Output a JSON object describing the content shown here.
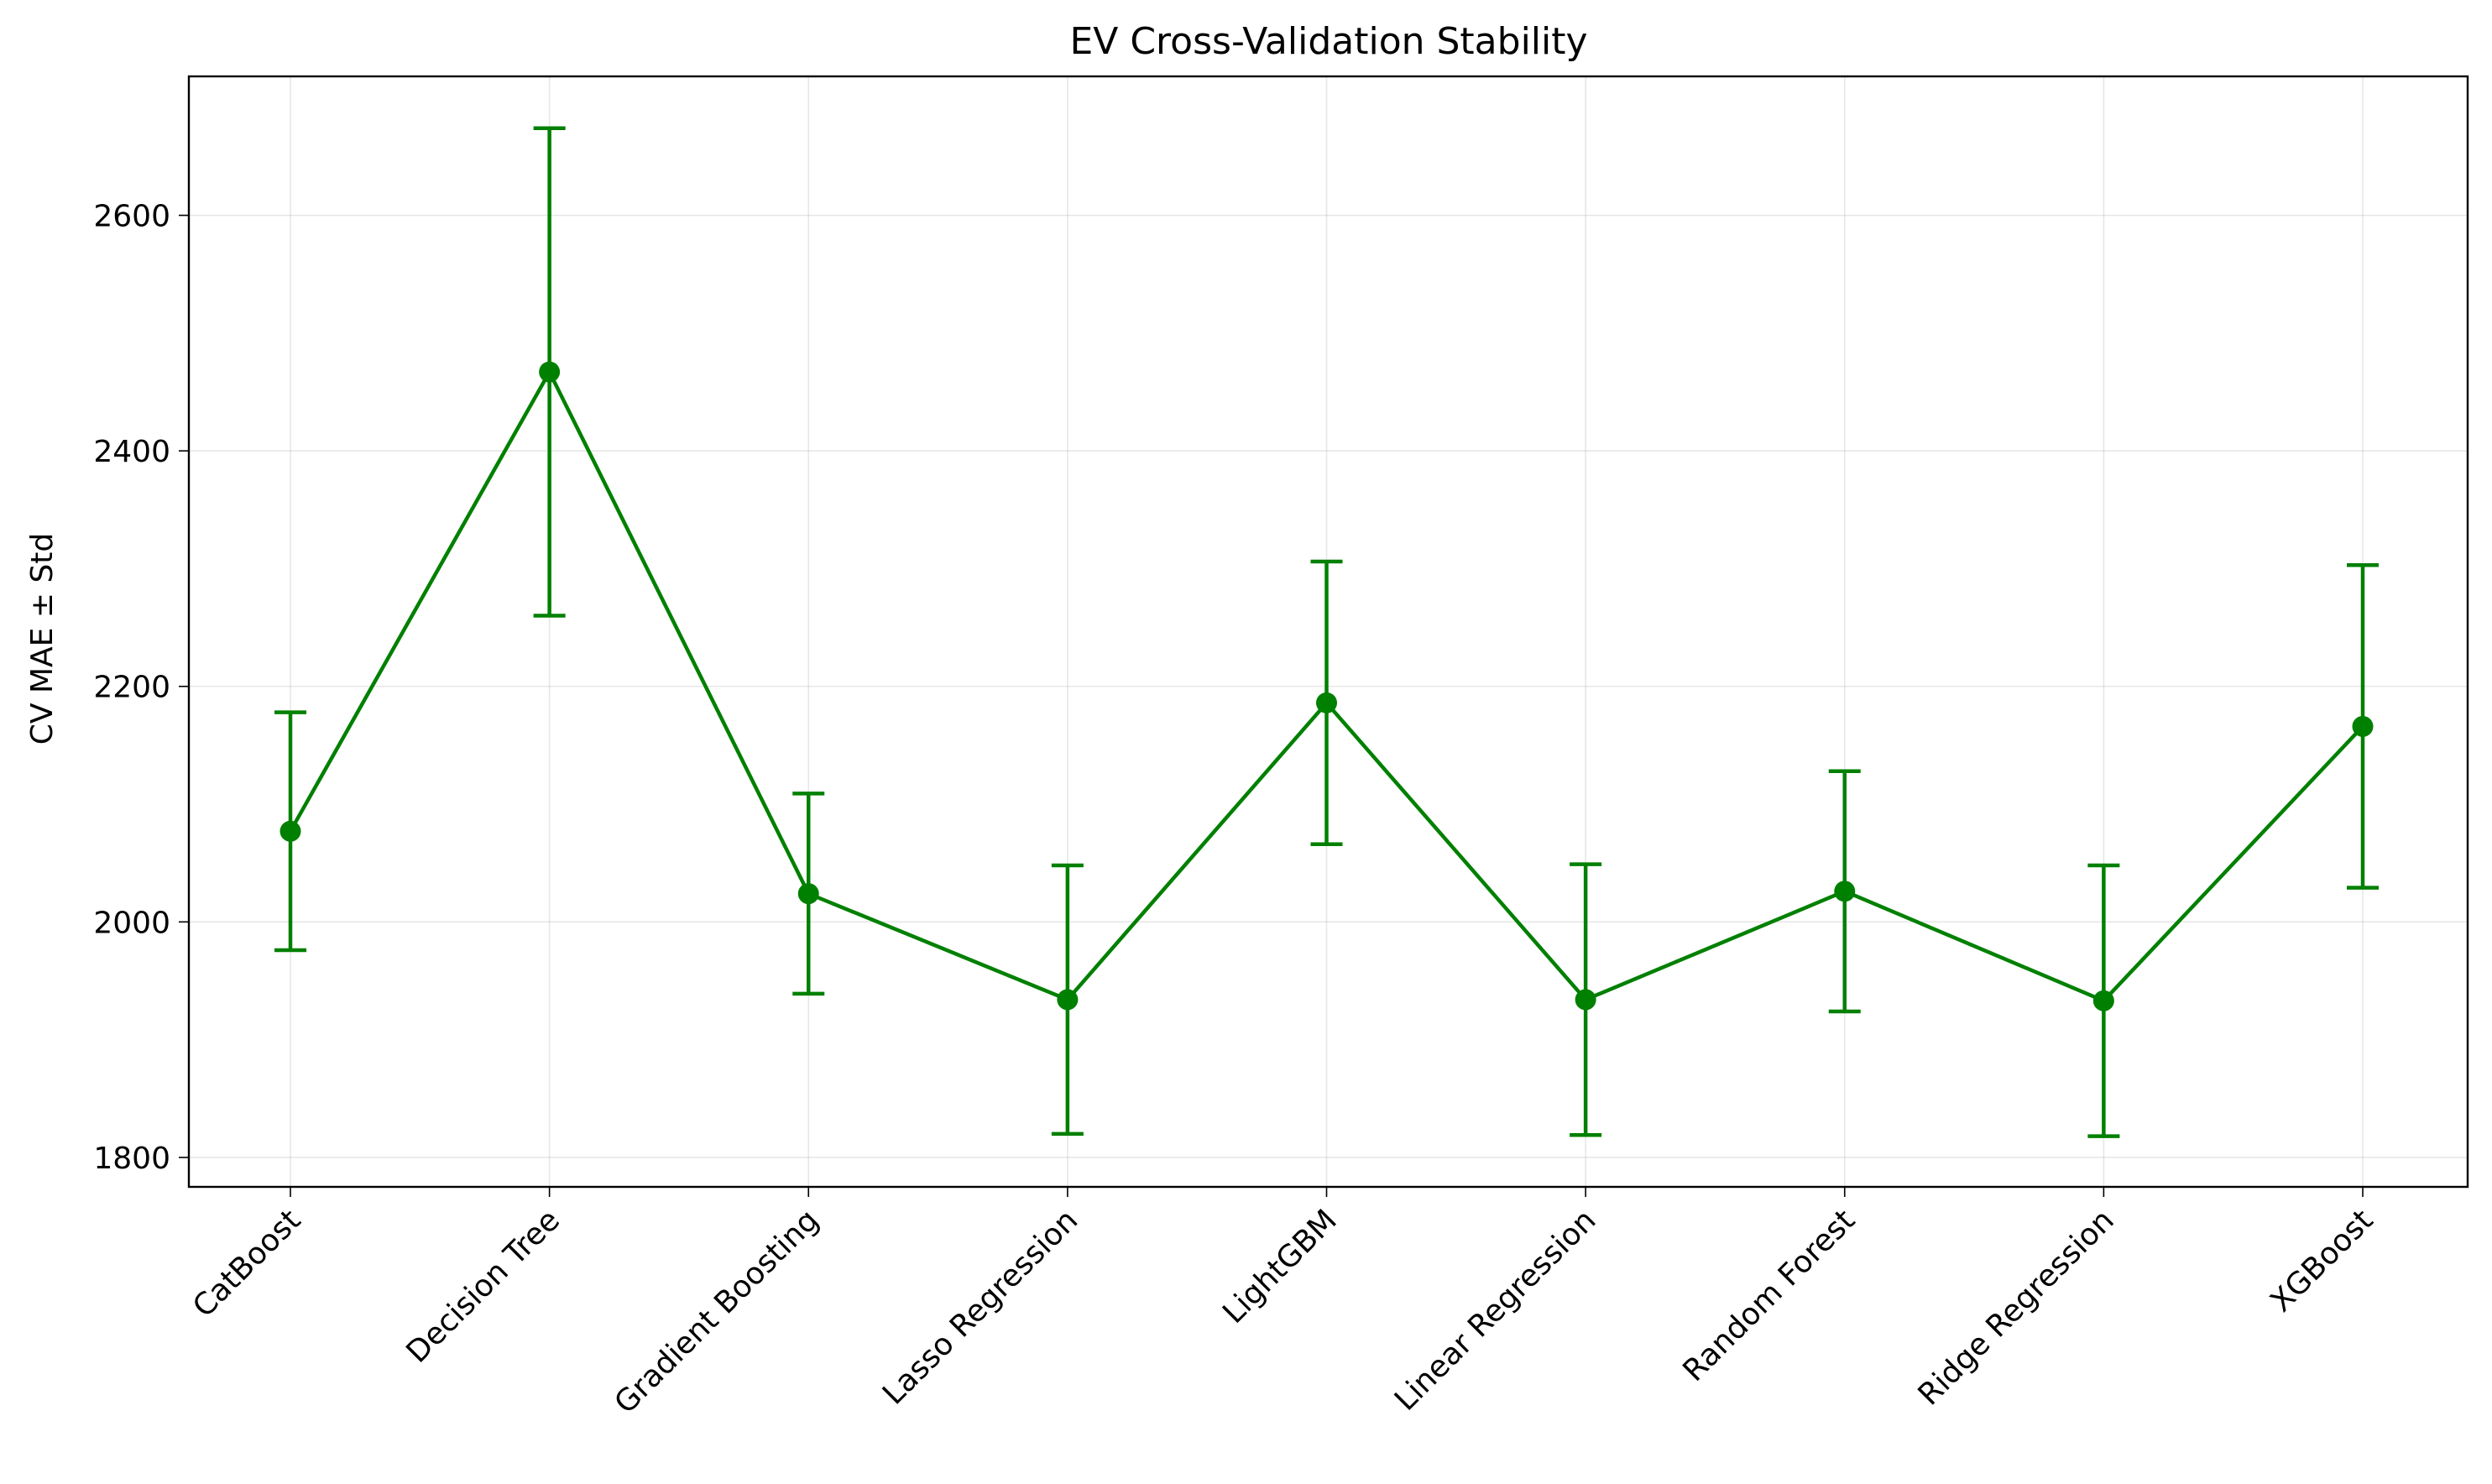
{
  "chart_data": {
    "type": "line",
    "title": "EV Cross-Validation Stability",
    "xlabel": "",
    "ylabel": "CV MAE ± Std",
    "categories": [
      "CatBoost",
      "Decision Tree",
      "Gradient Boosting",
      "Lasso Regression",
      "LightGBM",
      "Linear Regression",
      "Random Forest",
      "Ridge Regression",
      "XGBoost"
    ],
    "series": [
      {
        "values": [
          2077,
          2467,
          2024,
          1934,
          2186,
          1934,
          2026,
          1933,
          2166
        ],
        "error": [
          101,
          207,
          85,
          114,
          120,
          115,
          102,
          115,
          137
        ],
        "color": "#008000",
        "marker": "circle"
      }
    ],
    "ylim": [
      1775,
      2718
    ],
    "yticks": [
      1800,
      2000,
      2200,
      2400,
      2600
    ],
    "grid": true
  }
}
